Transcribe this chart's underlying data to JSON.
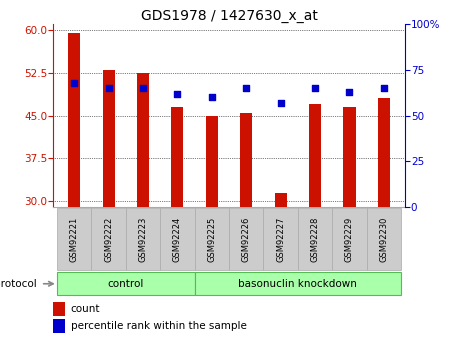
{
  "title": "GDS1978 / 1427630_x_at",
  "samples": [
    "GSM92221",
    "GSM92222",
    "GSM92223",
    "GSM92224",
    "GSM92225",
    "GSM92226",
    "GSM92227",
    "GSM92228",
    "GSM92229",
    "GSM92230"
  ],
  "count_values": [
    59.5,
    53.0,
    52.5,
    46.5,
    45.0,
    45.5,
    31.5,
    47.0,
    46.5,
    48.0
  ],
  "percentile_values": [
    68,
    65,
    65,
    62,
    60,
    65,
    57,
    65,
    63,
    65
  ],
  "ylim_left": [
    29,
    61
  ],
  "ylim_right": [
    0,
    100
  ],
  "yticks_left": [
    30,
    37.5,
    45,
    52.5,
    60
  ],
  "yticks_right": [
    0,
    25,
    50,
    75,
    100
  ],
  "bar_color": "#cc1100",
  "dot_color": "#0000cc",
  "bar_width": 0.35,
  "bg_color": "#ffffff",
  "plot_bg": "#ffffff",
  "control_label": "control",
  "knockdown_label": "basonuclin knockdown",
  "protocol_label": "protocol",
  "legend_count_label": "count",
  "legend_pct_label": "percentile rank within the sample",
  "group_bg_color": "#aaffaa",
  "xtick_bg_color": "#cccccc",
  "title_fontsize": 10,
  "tick_fontsize": 7.5,
  "label_fontsize": 8
}
